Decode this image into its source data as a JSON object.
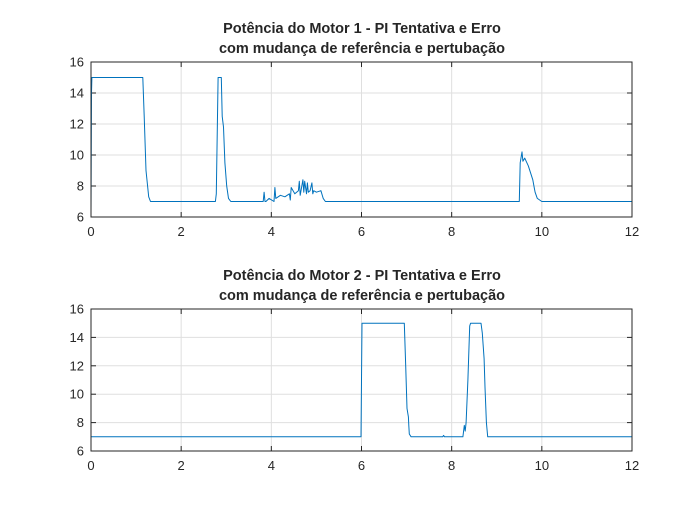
{
  "chart_data": [
    {
      "type": "line",
      "title_line1": "Potência do Motor 1 - PI Tentativa e Erro",
      "title_line2": "com mudança de referência e pertubação",
      "xlim": [
        0,
        12
      ],
      "ylim": [
        6,
        16
      ],
      "xticks": [
        "0",
        "2",
        "4",
        "6",
        "8",
        "10",
        "12"
      ],
      "yticks": [
        "6",
        "8",
        "10",
        "12",
        "14",
        "16"
      ],
      "grid": true,
      "line_color": "#0072BD",
      "series": [
        {
          "x": [
            0,
            0.01,
            0.02,
            1.15,
            1.18,
            1.22,
            1.28,
            1.32,
            2.76,
            2.78,
            2.82,
            2.89,
            2.91,
            2.94,
            2.97,
            3.01,
            3.05,
            3.1,
            3.82,
            3.84,
            3.86,
            3.88,
            3.95,
            4.06,
            4.08,
            4.1,
            4.2,
            4.3,
            4.4,
            4.42,
            4.44,
            4.52,
            4.6,
            4.62,
            4.64,
            4.7,
            4.72,
            4.74,
            4.78,
            4.8,
            4.82,
            4.86,
            4.9,
            4.92,
            4.94,
            5,
            5.1,
            5.15,
            5.2,
            9.5,
            9.52,
            9.56,
            9.58,
            9.62,
            9.7,
            9.8,
            9.83,
            9.85,
            9.9,
            10,
            12
          ],
          "y": [
            6.2,
            14,
            15,
            15,
            12.5,
            9,
            7.3,
            7,
            7,
            7.5,
            15,
            15,
            12.5,
            11.8,
            9.5,
            8,
            7.2,
            7,
            7,
            7.6,
            7,
            7,
            7.2,
            7,
            7.9,
            7.2,
            7.4,
            7.3,
            7.5,
            7.1,
            7.9,
            7.5,
            7.7,
            8.3,
            7.4,
            8.4,
            7.6,
            8.3,
            7.5,
            8.2,
            7.6,
            7.7,
            8.2,
            7.5,
            7.7,
            7.6,
            7.7,
            7.2,
            7,
            7,
            9.5,
            10.2,
            9.6,
            9.8,
            9.3,
            8.4,
            7.9,
            7.6,
            7.2,
            7,
            7
          ]
        }
      ]
    },
    {
      "type": "line",
      "title_line1": "Potência do Motor 2 - PI Tentativa e Erro",
      "title_line2": "com mudança de referência e pertubação",
      "xlim": [
        0,
        12
      ],
      "ylim": [
        6,
        16
      ],
      "xticks": [
        "0",
        "2",
        "4",
        "6",
        "8",
        "10",
        "12"
      ],
      "yticks": [
        "6",
        "8",
        "10",
        "12",
        "14",
        "16"
      ],
      "grid": true,
      "line_color": "#0072BD",
      "series": [
        {
          "x": [
            0,
            5.99,
            6.01,
            6.95,
            6.98,
            7.01,
            7.04,
            7.05,
            7.06,
            7.1,
            7.8,
            7.82,
            7.84,
            8.25,
            8.28,
            8.3,
            8.32,
            8.36,
            8.4,
            8.42,
            8.45,
            8.65,
            8.68,
            8.72,
            8.74,
            8.77,
            8.8,
            12
          ],
          "y": [
            7,
            7,
            15,
            15,
            12,
            9,
            8.4,
            7.8,
            7.2,
            7,
            7,
            7.1,
            7,
            7,
            7.8,
            7.4,
            8,
            11,
            14.8,
            15,
            15,
            15,
            14.3,
            12.5,
            10.5,
            8,
            7,
            7
          ]
        }
      ]
    }
  ]
}
